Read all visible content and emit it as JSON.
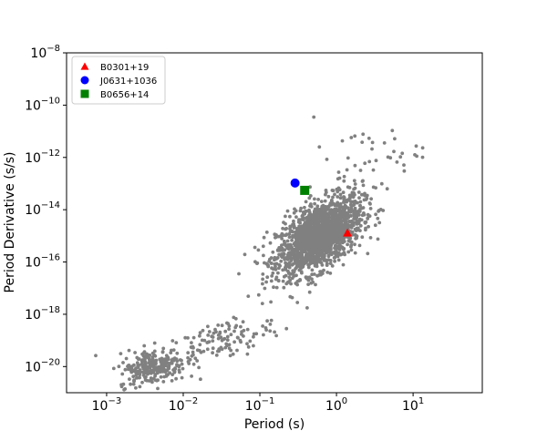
{
  "chart_data": {
    "type": "scatter",
    "xlabel": "Period (s)",
    "ylabel": "Period Derivative (s/s)",
    "x_scale": "log",
    "y_scale": "log",
    "xlim": [
      0.0003,
      80
    ],
    "ylim": [
      1e-21,
      1e-08
    ],
    "x_ticks": [
      {
        "base": "10",
        "exp": "−3",
        "value": 0.001
      },
      {
        "base": "10",
        "exp": "−2",
        "value": 0.01
      },
      {
        "base": "10",
        "exp": "−1",
        "value": 0.1
      },
      {
        "base": "10",
        "exp": "0",
        "value": 1
      },
      {
        "base": "10",
        "exp": "1",
        "value": 10
      }
    ],
    "y_ticks": [
      {
        "base": "10",
        "exp": "−20",
        "value": 1e-20
      },
      {
        "base": "10",
        "exp": "−18",
        "value": 1e-18
      },
      {
        "base": "10",
        "exp": "−16",
        "value": 1e-16
      },
      {
        "base": "10",
        "exp": "−14",
        "value": 1e-14
      },
      {
        "base": "10",
        "exp": "−12",
        "value": 1e-12
      },
      {
        "base": "10",
        "exp": "−10",
        "value": 1e-10
      },
      {
        "base": "10",
        "exp": "−8",
        "value": 1e-08
      }
    ],
    "background_population": {
      "color": "#808080",
      "clusters": [
        {
          "x_center": 0.6,
          "y_center": 1e-15,
          "count": 1700
        },
        {
          "x_center": 0.004,
          "y_center": 1e-20,
          "count": 260
        },
        {
          "x_center": 0.03,
          "y_center": 1e-19,
          "count": 120
        },
        {
          "x_center": 2.5,
          "y_center": 1e-12,
          "count": 40
        }
      ]
    },
    "series": [
      {
        "name": "B0301+19",
        "marker": "triangle",
        "color": "#ff0000",
        "x": 1.39,
        "y": 1.3e-15
      },
      {
        "name": "J0631+1036",
        "marker": "circle",
        "color": "#0000ff",
        "x": 0.288,
        "y": 1.05e-13
      },
      {
        "name": "B0656+14",
        "marker": "square",
        "color": "#008000",
        "x": 0.385,
        "y": 5.5e-14
      }
    ],
    "legend_position": "top-left",
    "grid": false
  }
}
